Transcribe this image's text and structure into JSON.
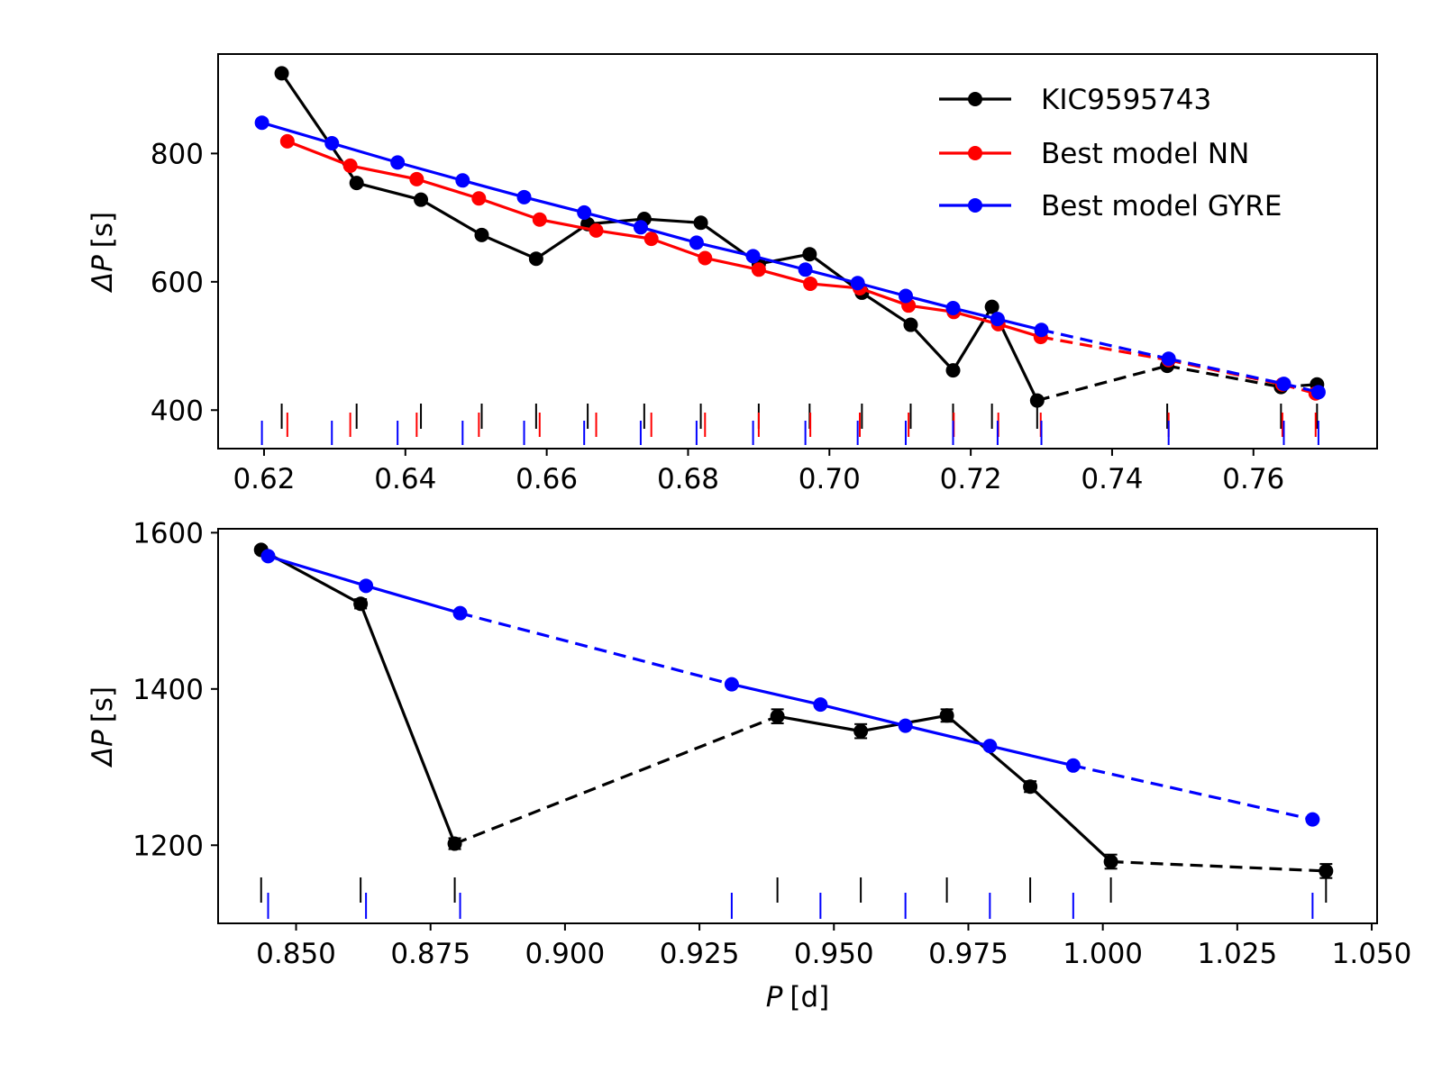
{
  "chart_data": [
    {
      "type": "line",
      "ylabel_symbol": "ΔP",
      "ylabel_unit": "[s]",
      "xlim": [
        0.6135,
        0.7775
      ],
      "ylim": [
        340,
        955
      ],
      "xticks": [
        0.62,
        0.64,
        0.66,
        0.68,
        0.7,
        0.72,
        0.74,
        0.76
      ],
      "xtick_labels": [
        "0.62",
        "0.64",
        "0.66",
        "0.68",
        "0.70",
        "0.72",
        "0.74",
        "0.76"
      ],
      "yticks": [
        400,
        600,
        800
      ],
      "ytick_labels": [
        "400",
        "600",
        "800"
      ],
      "grid": false,
      "legend_position": "top-right",
      "series": [
        {
          "name": "KIC9595743",
          "color": "#000000",
          "x": [
            0.6225,
            0.6331,
            0.6422,
            0.6508,
            0.6585,
            0.6658,
            0.6738,
            0.6818,
            0.69,
            0.6972,
            0.7046,
            0.7115,
            0.7175,
            0.723,
            0.7294,
            0.7478,
            0.7639,
            0.769
          ],
          "y": [
            925,
            754,
            728,
            673,
            636,
            690,
            698,
            692,
            628,
            643,
            583,
            533,
            462,
            561,
            415,
            469,
            436,
            440
          ],
          "dashed_segments": [
            14,
            15,
            16
          ],
          "markers": true
        },
        {
          "name": "Best model NN",
          "color": "#ff0000",
          "x": [
            0.6233,
            0.6322,
            0.6416,
            0.6504,
            0.659,
            0.667,
            0.6748,
            0.6824,
            0.69,
            0.6973,
            0.7043,
            0.7112,
            0.7176,
            0.7239,
            0.7299,
            0.748,
            0.7641,
            0.7688
          ],
          "y": [
            819,
            781,
            760,
            730,
            697,
            680,
            667,
            637,
            619,
            597,
            590,
            563,
            553,
            534,
            514,
            478,
            440,
            426
          ],
          "dashed_segments": [
            14,
            15,
            16
          ],
          "markers": true
        },
        {
          "name": "Best model GYRE",
          "color": "#0000ff",
          "x": [
            0.6197,
            0.6296,
            0.6389,
            0.6481,
            0.6568,
            0.6653,
            0.6733,
            0.6812,
            0.6892,
            0.6966,
            0.704,
            0.7108,
            0.7175,
            0.7238,
            0.73,
            0.748,
            0.7643,
            0.7692
          ],
          "y": [
            848,
            816,
            786,
            758,
            732,
            708,
            685,
            661,
            640,
            619,
            598,
            578,
            559,
            542,
            525,
            480,
            441,
            428
          ],
          "dashed_segments": [
            14,
            15,
            16
          ],
          "markers": true
        }
      ],
      "period_marks": [
        {
          "color": "#000000",
          "level": "high",
          "x": [
            0.6225,
            0.6331,
            0.6422,
            0.6508,
            0.6585,
            0.6658,
            0.6738,
            0.6818,
            0.69,
            0.6972,
            0.7046,
            0.7115,
            0.7175,
            0.723,
            0.7294,
            0.7478,
            0.7639,
            0.769
          ]
        },
        {
          "color": "#ff0000",
          "level": "mid",
          "x": [
            0.6233,
            0.6322,
            0.6416,
            0.6504,
            0.659,
            0.667,
            0.6748,
            0.6824,
            0.69,
            0.6973,
            0.7043,
            0.7112,
            0.7176,
            0.7239,
            0.7299,
            0.748,
            0.7641,
            0.7688
          ]
        },
        {
          "color": "#0000ff",
          "level": "low",
          "x": [
            0.6197,
            0.6296,
            0.6389,
            0.6481,
            0.6568,
            0.6653,
            0.6733,
            0.6812,
            0.6892,
            0.6966,
            0.704,
            0.7108,
            0.7175,
            0.7238,
            0.73,
            0.748,
            0.7643,
            0.7692
          ]
        }
      ]
    },
    {
      "type": "line",
      "ylabel_symbol": "ΔP",
      "ylabel_unit": "[s]",
      "xlabel_symbol": "P",
      "xlabel_unit": "[d]",
      "xlim": [
        0.8355,
        1.051
      ],
      "ylim": [
        1100,
        1605
      ],
      "xticks": [
        0.85,
        0.875,
        0.9,
        0.925,
        0.95,
        0.975,
        1.0,
        1.025,
        1.05
      ],
      "xtick_labels": [
        "0.850",
        "0.875",
        "0.900",
        "0.925",
        "0.950",
        "0.975",
        "1.000",
        "1.025",
        "1.050"
      ],
      "yticks": [
        1200,
        1400,
        1600
      ],
      "ytick_labels": [
        "1200",
        "1400",
        "1600"
      ],
      "grid": false,
      "legend_position": "none",
      "series": [
        {
          "color": "#000000",
          "x": [
            0.8435,
            0.862,
            0.8795,
            0.9395,
            0.955,
            0.971,
            0.9865,
            1.0015,
            1.0415
          ],
          "y": [
            1578,
            1509,
            1202,
            1365,
            1346,
            1366,
            1275,
            1179,
            1167
          ],
          "yerr": [
            4,
            6,
            7,
            9,
            9,
            8,
            7,
            9,
            9
          ],
          "dashed_segments": [
            2,
            7
          ],
          "markers": true
        },
        {
          "color": "#0000ff",
          "x": [
            0.8448,
            0.863,
            0.8805,
            0.931,
            0.9475,
            0.9633,
            0.979,
            0.9945,
            1.039
          ],
          "y": [
            1570,
            1532,
            1497,
            1406,
            1380,
            1353,
            1327,
            1302,
            1233
          ],
          "dashed_segments": [
            2,
            7
          ],
          "markers": true
        }
      ],
      "period_marks": [
        {
          "color": "#000000",
          "level": "high",
          "x": [
            0.8435,
            0.862,
            0.8795,
            0.9395,
            0.955,
            0.971,
            0.9865,
            1.0015,
            1.0415
          ]
        },
        {
          "color": "#0000ff",
          "level": "low",
          "x": [
            0.8448,
            0.863,
            0.8805,
            0.931,
            0.9475,
            0.9633,
            0.979,
            0.9945,
            1.039
          ]
        }
      ]
    }
  ]
}
